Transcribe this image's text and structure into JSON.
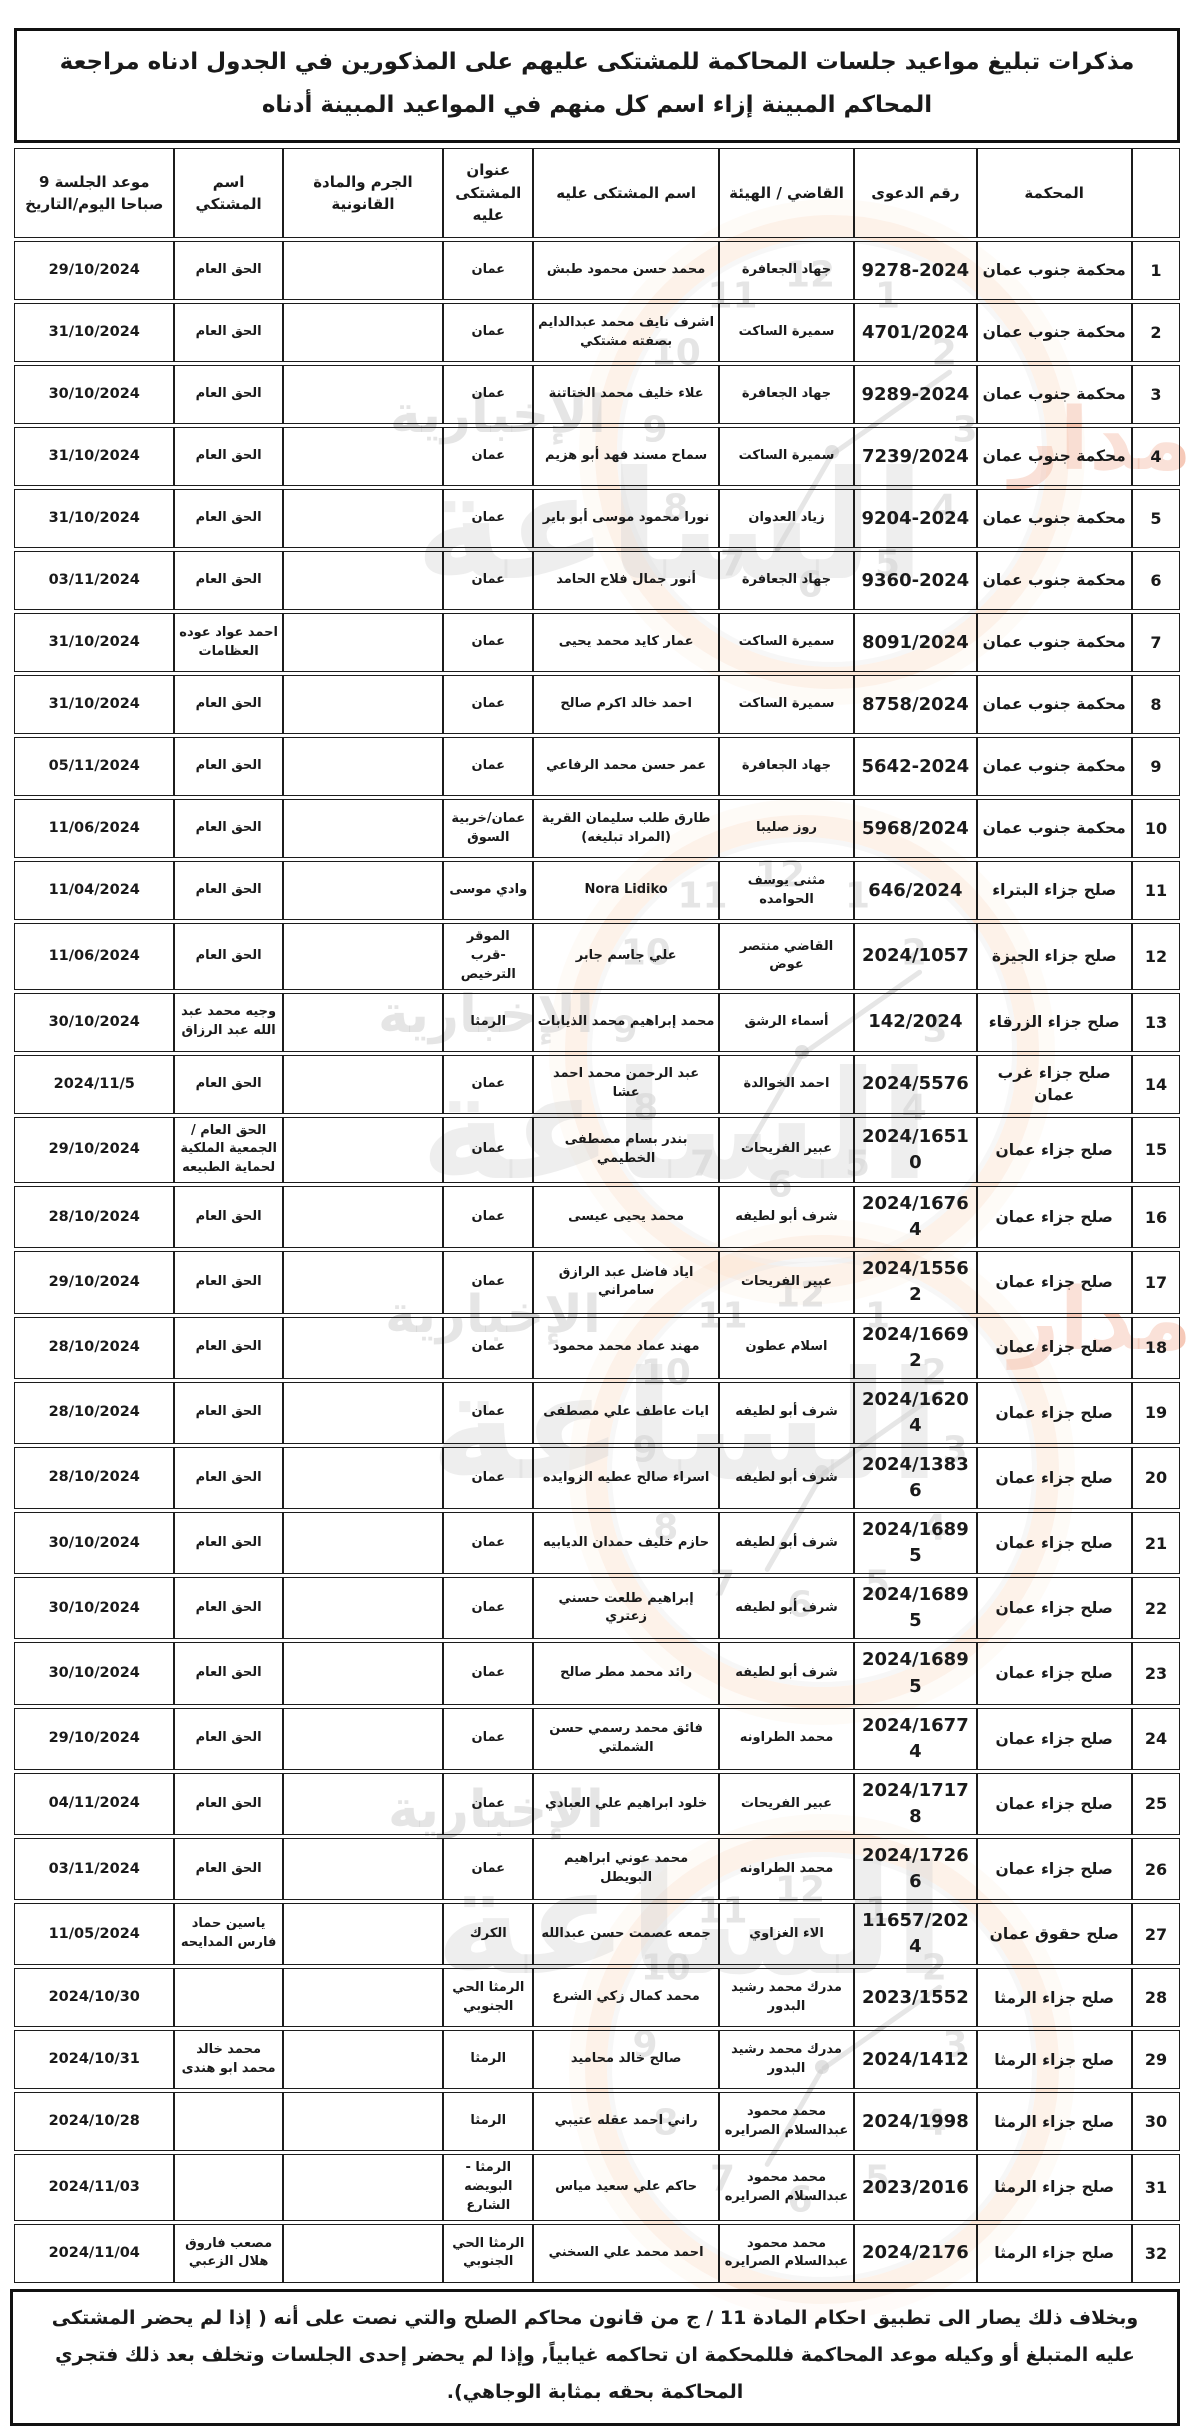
{
  "page": {
    "title": "مذكرات تبليغ مواعيد جلسات المحاكمة للمشتكى عليهم على المذكورين في الجدول ادناه مراجعة المحاكم المبينة إزاء اسم كل منهم في المواعيد المبينة أدناه",
    "footer": "وبخلاف ذلك يصار الى تطبيق احكام المادة 11 / ج من قانون محاكم الصلح والتي نصت على أنه ( إذا لم يحضر المشتكى عليه المتبلغ أو وكيله موعد المحاكمة فللمحكمة ان تحاكمه غيابياً, وإذا لم يحضر إحدى الجلسات وتخلف بعد ذلك فتجري المحاكمة بحقه بمثابة الوجاهي)."
  },
  "watermark": {
    "news_text": "الإخبارية",
    "brand_text": "الساعة",
    "side_text": "مدار",
    "clock_numbers": [
      "12",
      "1",
      "2",
      "3",
      "4",
      "5",
      "6",
      "7",
      "8",
      "9",
      "10",
      "11"
    ]
  },
  "table": {
    "headers": {
      "num": "",
      "court": "المحكمة",
      "case_no": "رقم الدعوى",
      "judge": "القاضي / الهيئة",
      "defendant": "اسم المشتكى عليه",
      "address": "عنوان المشتكى عليه",
      "crime": "الجرم والمادة القانونية",
      "complainant": "اسم المشتكي",
      "session_date": "موعد الجلسة 9 صباحا اليوم/التاريخ"
    },
    "rows": [
      {
        "num": "1",
        "court": "محكمة جنوب عمان",
        "case_no": "9278-2024",
        "judge": "جهاد الجعافرة",
        "defendant": "محمد حسن محمود طبش",
        "address": "عمان",
        "crime": "",
        "complainant": "الحق العام",
        "session_date": "29/10/2024"
      },
      {
        "num": "2",
        "court": "محكمة جنوب عمان",
        "case_no": "4701/2024",
        "judge": "سميرة الساكت",
        "defendant": "اشرف نايف محمد عبدالدايم بصفته مشتكي",
        "address": "عمان",
        "crime": "",
        "complainant": "الحق العام",
        "session_date": "31/10/2024"
      },
      {
        "num": "3",
        "court": "محكمة جنوب عمان",
        "case_no": "9289-2024",
        "judge": "جهاد الجعافرة",
        "defendant": "علاء خليف محمد الختاتنة",
        "address": "عمان",
        "crime": "",
        "complainant": "الحق العام",
        "session_date": "30/10/2024"
      },
      {
        "num": "4",
        "court": "محكمة جنوب عمان",
        "case_no": "7239/2024",
        "judge": "سميرة الساكت",
        "defendant": "سماح مسند فهد أبو هزيم",
        "address": "عمان",
        "crime": "",
        "complainant": "الحق العام",
        "session_date": "31/10/2024"
      },
      {
        "num": "5",
        "court": "محكمة جنوب عمان",
        "case_no": "9204-2024",
        "judge": "زياد العدوان",
        "defendant": "نورا محمود موسى أبو باير",
        "address": "عمان",
        "crime": "",
        "complainant": "الحق العام",
        "session_date": "31/10/2024"
      },
      {
        "num": "6",
        "court": "محكمة جنوب عمان",
        "case_no": "9360-2024",
        "judge": "جهاد الجعافرة",
        "defendant": "أنور جمال فلاح الحامد",
        "address": "عمان",
        "crime": "",
        "complainant": "الحق العام",
        "session_date": "03/11/2024"
      },
      {
        "num": "7",
        "court": "محكمة جنوب عمان",
        "case_no": "8091/2024",
        "judge": "سميرة الساكت",
        "defendant": "عمار كايد محمد يحيى",
        "address": "عمان",
        "crime": "",
        "complainant": "احمد عواد عوده العظامات",
        "session_date": "31/10/2024"
      },
      {
        "num": "8",
        "court": "محكمة جنوب عمان",
        "case_no": "8758/2024",
        "judge": "سميرة الساكت",
        "defendant": "احمد خالد اكرم صالح",
        "address": "عمان",
        "crime": "",
        "complainant": "الحق العام",
        "session_date": "31/10/2024"
      },
      {
        "num": "9",
        "court": "محكمة جنوب عمان",
        "case_no": "5642-2024",
        "judge": "جهاد الجعافرة",
        "defendant": "عمر حسن محمد الرفاعي",
        "address": "عمان",
        "crime": "",
        "complainant": "الحق العام",
        "session_date": "05/11/2024"
      },
      {
        "num": "10",
        "court": "محكمة جنوب عمان",
        "case_no": "5968/2024",
        "judge": "روز صليبا",
        "defendant": "طارق طلب سليمان القرية (المراد تبليغه)",
        "address": "عمان/خربية السوق",
        "crime": "",
        "complainant": "الحق العام",
        "session_date": "11/06/2024"
      },
      {
        "num": "11",
        "court": "صلح جزاء البتراء",
        "case_no": "646/2024",
        "judge": "مثنى يوسف الحوامده",
        "defendant": "Nora Lidiko",
        "address": "وادي موسى",
        "crime": "",
        "complainant": "الحق العام",
        "session_date": "11/04/2024"
      },
      {
        "num": "12",
        "court": "صلح جزاء الجيزة",
        "case_no": "2024/1057",
        "judge": "القاضي منتصر عوض",
        "defendant": "علي جاسم جابر",
        "address": "الموقر -قرب الترخيص",
        "crime": "",
        "complainant": "الحق العام",
        "session_date": "11/06/2024"
      },
      {
        "num": "13",
        "court": "صلح جزاء الزرقاء",
        "case_no": "142/2024",
        "judge": "أسماء الرشق",
        "defendant": "محمد إبراهيم محمد الذيابات",
        "address": "الرمثا",
        "crime": "",
        "complainant": "وجيه محمد عبد الله عبد الرزاق",
        "session_date": "30/10/2024"
      },
      {
        "num": "14",
        "court": "صلح جزاء غرب عمان",
        "case_no": "2024/5576",
        "judge": "احمد الخوالدة",
        "defendant": "عبد الرحمن محمد احمد عشا",
        "address": "عمان",
        "crime": "",
        "complainant": "الحق العام",
        "session_date": "2024/11/5"
      },
      {
        "num": "15",
        "court": "صلح جزاء عمان",
        "case_no": "2024/16510",
        "judge": "عبير الفريحات",
        "defendant": "بندر بسام مصطفى الخطيمي",
        "address": "عمان",
        "crime": "",
        "complainant": "الحق العام /الجمعية الملكية لحماية الطبيعه",
        "session_date": "29/10/2024"
      },
      {
        "num": "16",
        "court": "صلح جزاء عمان",
        "case_no": "2024/16764",
        "judge": "شرف أبو لطيفه",
        "defendant": "محمد يحيى عيسى",
        "address": "عمان",
        "crime": "",
        "complainant": "الحق العام",
        "session_date": "28/10/2024"
      },
      {
        "num": "17",
        "court": "صلح جزاء عمان",
        "case_no": "2024/15562",
        "judge": "عبير الفريحات",
        "defendant": "اياد فاضل عبد الرازق سامراني",
        "address": "عمان",
        "crime": "",
        "complainant": "الحق العام",
        "session_date": "29/10/2024"
      },
      {
        "num": "18",
        "court": "صلح جزاء عمان",
        "case_no": "2024/16692",
        "judge": "اسلام عطون",
        "defendant": "مهند عماد محمد محمود",
        "address": "عمان",
        "crime": "",
        "complainant": "الحق العام",
        "session_date": "28/10/2024"
      },
      {
        "num": "19",
        "court": "صلح جزاء عمان",
        "case_no": "2024/16204",
        "judge": "شرف أبو لطيفه",
        "defendant": "ايات عاطف علي مصطفى",
        "address": "عمان",
        "crime": "",
        "complainant": "الحق العام",
        "session_date": "28/10/2024"
      },
      {
        "num": "20",
        "court": "صلح جزاء عمان",
        "case_no": "2024/13836",
        "judge": "شرف أبو لطيفه",
        "defendant": "اسراء صالح عطيه الزوايده",
        "address": "عمان",
        "crime": "",
        "complainant": "الحق العام",
        "session_date": "28/10/2024"
      },
      {
        "num": "21",
        "court": "صلح جزاء عمان",
        "case_no": "2024/16895",
        "judge": "شرف أبو لطيفه",
        "defendant": "حازم خليف حمدان الديابيه",
        "address": "عمان",
        "crime": "",
        "complainant": "الحق العام",
        "session_date": "30/10/2024"
      },
      {
        "num": "22",
        "court": "صلح جزاء عمان",
        "case_no": "2024/16895",
        "judge": "شرف أبو لطيفه",
        "defendant": "إبراهيم طلعت حسني زعتري",
        "address": "عمان",
        "crime": "",
        "complainant": "الحق العام",
        "session_date": "30/10/2024"
      },
      {
        "num": "23",
        "court": "صلح جزاء عمان",
        "case_no": "2024/16895",
        "judge": "شرف أبو لطيفه",
        "defendant": "رائد محمد مطر صالح",
        "address": "عمان",
        "crime": "",
        "complainant": "الحق العام",
        "session_date": "30/10/2024"
      },
      {
        "num": "24",
        "court": "صلح جزاء عمان",
        "case_no": "2024/16774",
        "judge": "محمد الطراونه",
        "defendant": "فائق محمد رسمي حسن الشملتي",
        "address": "عمان",
        "crime": "",
        "complainant": "الحق العام",
        "session_date": "29/10/2024"
      },
      {
        "num": "25",
        "court": "صلح جزاء عمان",
        "case_no": "2024/17178",
        "judge": "عبير الفريحات",
        "defendant": "خلود ابراهيم علي العبادي",
        "address": "عمان",
        "crime": "",
        "complainant": "الحق العام",
        "session_date": "04/11/2024"
      },
      {
        "num": "26",
        "court": "صلح جزاء عمان",
        "case_no": "2024/17266",
        "judge": "محمد الطراونه",
        "defendant": "محمد عوني ابراهيم البويطل",
        "address": "عمان",
        "crime": "",
        "complainant": "الحق العام",
        "session_date": "03/11/2024"
      },
      {
        "num": "27",
        "court": "صلح حقوق عمان",
        "case_no": "11657/2024",
        "judge": "الاء الغزاوي",
        "defendant": "جمعه عصمت حسن عبدالله",
        "address": "الكرك",
        "crime": "",
        "complainant": "ياسين حماد فارس المدايحه",
        "session_date": "11/05/2024"
      },
      {
        "num": "28",
        "court": "صلح جزاء الرمثا",
        "case_no": "2023/1552",
        "judge": "مدرك محمد رشيد البدور",
        "defendant": "محمد كمال زكي الشرع",
        "address": "الرمثا الحي الجنوبي",
        "crime": "",
        "complainant": "",
        "session_date": "2024/10/30"
      },
      {
        "num": "29",
        "court": "صلح جزاء الرمثا",
        "case_no": "2024/1412",
        "judge": "مدرك محمد رشيد البدور",
        "defendant": "صالح خالد محاميد",
        "address": "الرمثا",
        "crime": "",
        "complainant": "محمد خالد محمد ابو هندى",
        "session_date": "2024/10/31"
      },
      {
        "num": "30",
        "court": "صلح جزاء الرمثا",
        "case_no": "2024/1998",
        "judge": "محمد محمود عبدالسلام الصرايره",
        "defendant": "راني احمد عقله عتيبي",
        "address": "الرمثا",
        "crime": "",
        "complainant": "",
        "session_date": "2024/10/28"
      },
      {
        "num": "31",
        "court": "صلح جزاء الرمثا",
        "case_no": "2023/2016",
        "judge": "محمد محمود عبدالسلام الصرايره",
        "defendant": "حاكم علي سعيد مياس",
        "address": "الرمثا - البويضه الشارع",
        "crime": "",
        "complainant": "",
        "session_date": "2024/11/03"
      },
      {
        "num": "32",
        "court": "صلح جزاء الرمثا",
        "case_no": "2024/2176",
        "judge": "محمد محمود عبدالسلام الصرايره",
        "defendant": "احمد محمد علي السخني",
        "address": "الرمثا الحي الجنوبي",
        "crime": "",
        "complainant": "مصعب فاروق هلال الزعبي",
        "session_date": "2024/11/04"
      }
    ]
  }
}
